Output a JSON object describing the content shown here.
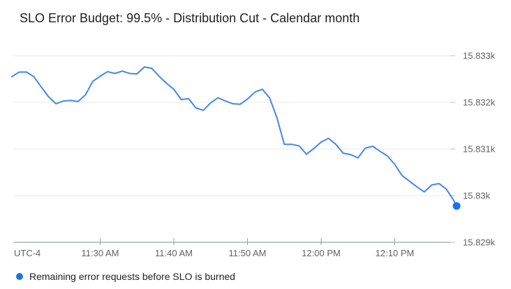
{
  "header": {
    "title": "SLO Error Budget: 99.5% - Distribution Cut - Calendar month"
  },
  "colors": {
    "background": "#ffffff",
    "title_text": "#212121",
    "line": "#4285f4",
    "end_dot": "#1a73e8",
    "grid": "#e8eaed",
    "axis": "#9aa0a6",
    "axis_tick": "#b6babf",
    "axis_label": "#616161",
    "legend_text": "#212121"
  },
  "chart_data": {
    "type": "line",
    "title": "SLO Error Budget: 99.5% - Distribution Cut - Calendar month",
    "grid": true,
    "x_axis": {
      "timezone_label": "UTC-4",
      "unit": "minutes_from_series_start",
      "range": [
        0,
        60.4
      ],
      "ticks": [
        {
          "t": 12,
          "label": "11:30 AM"
        },
        {
          "t": 22,
          "label": "11:40 AM"
        },
        {
          "t": 32,
          "label": "11:50 AM"
        },
        {
          "t": 42,
          "label": "12:00 PM"
        },
        {
          "t": 52,
          "label": "12:10 PM"
        }
      ]
    },
    "y_axis": {
      "range": [
        15829,
        15833.25
      ],
      "ticks": [
        {
          "v": 15833,
          "label": "15.833k"
        },
        {
          "v": 15832,
          "label": "15.832k"
        },
        {
          "v": 15831,
          "label": "15.831k"
        },
        {
          "v": 15830,
          "label": "15.83k"
        },
        {
          "v": 15829,
          "label": "15.829k"
        }
      ]
    },
    "series": [
      {
        "name": "Remaining error requests before SLO is burned",
        "color": "#4285f4",
        "end_dot_color": "#1a73e8",
        "points": [
          [
            0,
            15832.55
          ],
          [
            1,
            15832.65
          ],
          [
            2,
            15832.65
          ],
          [
            3,
            15832.55
          ],
          [
            4,
            15832.33
          ],
          [
            5,
            15832.12
          ],
          [
            6,
            15831.97
          ],
          [
            7,
            15832.03
          ],
          [
            8,
            15832.04
          ],
          [
            9,
            15832.02
          ],
          [
            10,
            15832.16
          ],
          [
            11,
            15832.45
          ],
          [
            12,
            15832.56
          ],
          [
            13,
            15832.66
          ],
          [
            14,
            15832.62
          ],
          [
            15,
            15832.67
          ],
          [
            16,
            15832.62
          ],
          [
            17,
            15832.61
          ],
          [
            18,
            15832.76
          ],
          [
            19,
            15832.73
          ],
          [
            20,
            15832.56
          ],
          [
            21,
            15832.41
          ],
          [
            22,
            15832.28
          ],
          [
            23,
            15832.06
          ],
          [
            24,
            15832.08
          ],
          [
            25,
            15831.88
          ],
          [
            26,
            15831.83
          ],
          [
            27,
            15831.99
          ],
          [
            28,
            15832.1
          ],
          [
            29,
            15832.03
          ],
          [
            30,
            15831.97
          ],
          [
            31,
            15831.96
          ],
          [
            32,
            15832.07
          ],
          [
            33,
            15832.22
          ],
          [
            34,
            15832.28
          ],
          [
            35,
            15832.1
          ],
          [
            36,
            15831.67
          ],
          [
            37,
            15831.1
          ],
          [
            38,
            15831.1
          ],
          [
            39,
            15831.07
          ],
          [
            40,
            15830.89
          ],
          [
            41,
            15831.01
          ],
          [
            42,
            15831.15
          ],
          [
            43,
            15831.23
          ],
          [
            44,
            15831.1
          ],
          [
            45,
            15830.91
          ],
          [
            46,
            15830.88
          ],
          [
            47,
            15830.81
          ],
          [
            48,
            15831.02
          ],
          [
            49,
            15831.06
          ],
          [
            50,
            15830.95
          ],
          [
            51,
            15830.85
          ],
          [
            52,
            15830.67
          ],
          [
            53,
            15830.43
          ],
          [
            54,
            15830.31
          ],
          [
            55,
            15830.19
          ],
          [
            56,
            15830.08
          ],
          [
            57,
            15830.23
          ],
          [
            58,
            15830.26
          ],
          [
            59,
            15830.14
          ],
          [
            60,
            15829.9
          ],
          [
            60.4,
            15829.78
          ]
        ]
      }
    ],
    "legend": {
      "position": "bottom-left",
      "items": [
        {
          "label": "Remaining error requests before SLO is burned",
          "color": "#1a73e8"
        }
      ]
    }
  }
}
